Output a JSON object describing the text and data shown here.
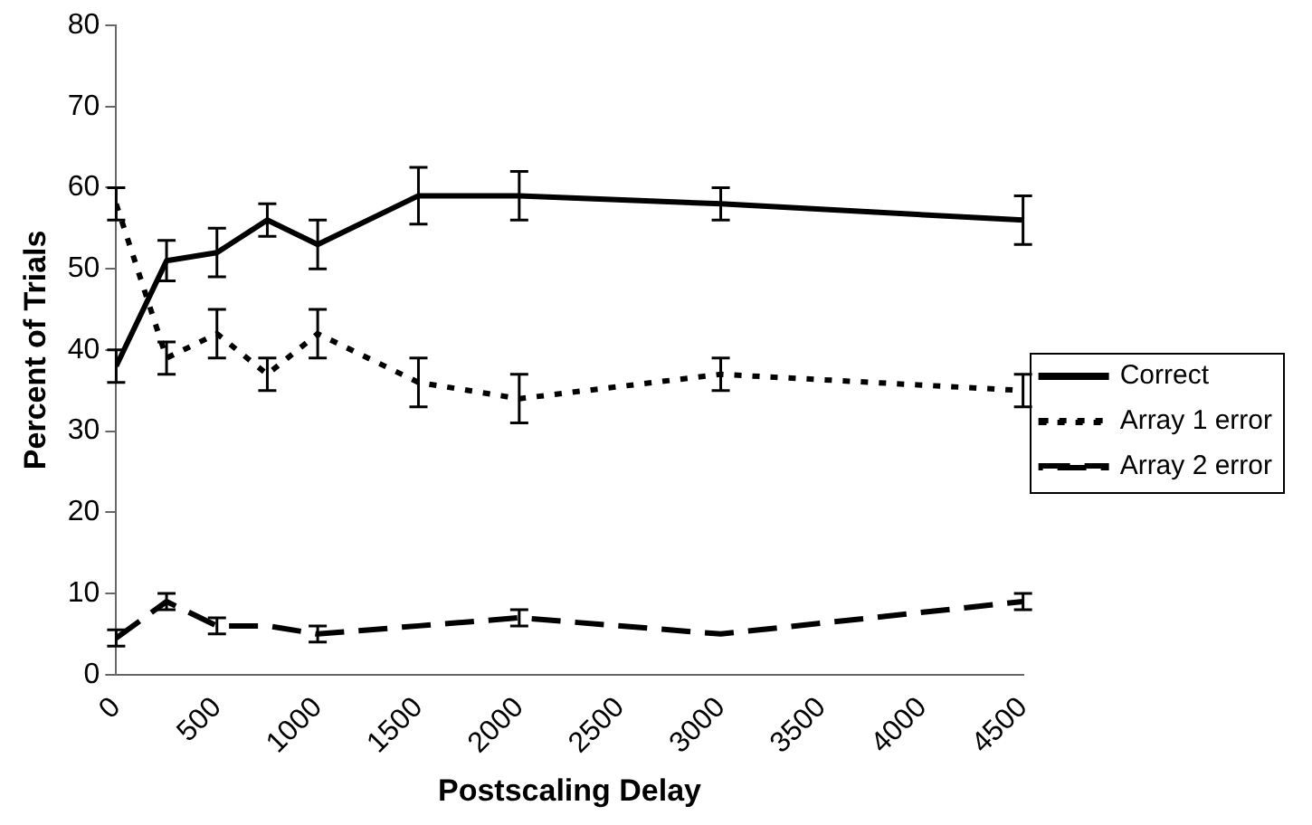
{
  "chart_data": {
    "type": "line",
    "xlabel": "Postscaling Delay",
    "ylabel": "Percent of Trials",
    "x": [
      0,
      250,
      500,
      750,
      1000,
      1500,
      2000,
      3000,
      4500
    ],
    "xlim": [
      0,
      4500
    ],
    "xticks": [
      0,
      500,
      1000,
      1500,
      2000,
      2500,
      3000,
      3500,
      4000,
      4500
    ],
    "ylim": [
      0,
      80
    ],
    "yticks": [
      0,
      10,
      20,
      30,
      40,
      50,
      60,
      70,
      80
    ],
    "grid": false,
    "legend": "right",
    "series": [
      {
        "name": "Correct",
        "color": "#000000",
        "line_style": "solid",
        "values": [
          38,
          51,
          52,
          56,
          53,
          59,
          59,
          58,
          56
        ],
        "errors": [
          2,
          2.5,
          3,
          2,
          3,
          3.5,
          3,
          2,
          3
        ]
      },
      {
        "name": "Array 1 error",
        "color": "#000000",
        "line_style": "dotted",
        "values": [
          58,
          39,
          42,
          37,
          42,
          36,
          34,
          37,
          35
        ],
        "errors": [
          2,
          2,
          3,
          2,
          3,
          3,
          3,
          2,
          2
        ]
      },
      {
        "name": "Array 2 error",
        "color": "#000000",
        "line_style": "dashed",
        "values": [
          4.5,
          9,
          6,
          6,
          5,
          6,
          7,
          5,
          9
        ],
        "errors": [
          1,
          1,
          1,
          null,
          1,
          null,
          1,
          null,
          1
        ]
      }
    ]
  }
}
